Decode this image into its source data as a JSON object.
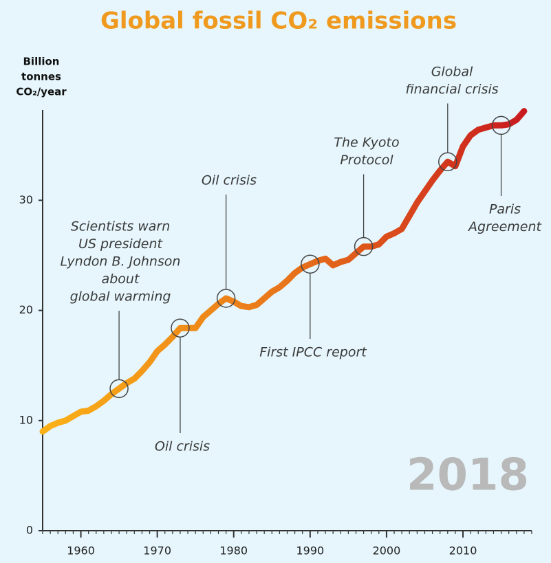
{
  "chart_data": {
    "type": "line",
    "title": "Global fossil CO₂ emissions",
    "y_label": [
      "Billion",
      "tonnes",
      "CO₂/year"
    ],
    "watermark": "2018",
    "x": [
      1955,
      1956,
      1957,
      1958,
      1959,
      1960,
      1961,
      1962,
      1963,
      1964,
      1965,
      1966,
      1967,
      1968,
      1969,
      1970,
      1971,
      1972,
      1973,
      1974,
      1975,
      1976,
      1977,
      1978,
      1979,
      1980,
      1981,
      1982,
      1983,
      1984,
      1985,
      1986,
      1987,
      1988,
      1989,
      1990,
      1991,
      1992,
      1993,
      1994,
      1995,
      1996,
      1997,
      1998,
      1999,
      2000,
      2001,
      2002,
      2003,
      2004,
      2005,
      2006,
      2007,
      2008,
      2009,
      2010,
      2011,
      2012,
      2013,
      2014,
      2015,
      2016,
      2017,
      2018
    ],
    "series": [
      {
        "colors": [
          "#fbb117",
          "#e8741a",
          "#c8171e"
        ],
        "values": [
          9.0,
          9.5,
          9.8,
          10.0,
          10.4,
          10.8,
          10.9,
          11.3,
          11.8,
          12.4,
          12.9,
          13.4,
          13.8,
          14.5,
          15.3,
          16.3,
          16.9,
          17.6,
          18.4,
          18.4,
          18.4,
          19.4,
          20.0,
          20.6,
          21.1,
          20.8,
          20.4,
          20.3,
          20.5,
          21.1,
          21.7,
          22.1,
          22.7,
          23.4,
          23.9,
          24.2,
          24.5,
          24.7,
          24.1,
          24.4,
          24.6,
          25.2,
          25.8,
          25.8,
          26.0,
          26.7,
          27.0,
          27.4,
          28.6,
          29.8,
          30.8,
          31.8,
          32.7,
          33.5,
          33.1,
          34.9,
          35.9,
          36.4,
          36.6,
          36.8,
          36.8,
          36.9,
          37.3,
          38.1
        ]
      }
    ],
    "xlim": [
      1955,
      2019
    ],
    "xticks": [
      1960,
      1970,
      1980,
      1990,
      2000,
      2010
    ],
    "ylim": [
      0,
      38.2
    ],
    "yticks": [
      0,
      10,
      20,
      30
    ],
    "annotations": [
      {
        "x": 1965,
        "text": [
          "Scientists warn",
          "US president",
          "Lyndon B. Johnson",
          "about",
          "global warming"
        ]
      },
      {
        "x": 1973,
        "text": [
          "Oil crisis"
        ]
      },
      {
        "x": 1979,
        "text": [
          "Oil crisis"
        ]
      },
      {
        "x": 1990,
        "text": [
          "First IPCC report"
        ]
      },
      {
        "x": 1997,
        "text": [
          "The Kyoto",
          "Protocol"
        ]
      },
      {
        "x": 2008,
        "text": [
          "Global",
          "financial crisis"
        ]
      },
      {
        "x": 2015,
        "text": [
          "Paris",
          "Agreement"
        ]
      }
    ]
  }
}
